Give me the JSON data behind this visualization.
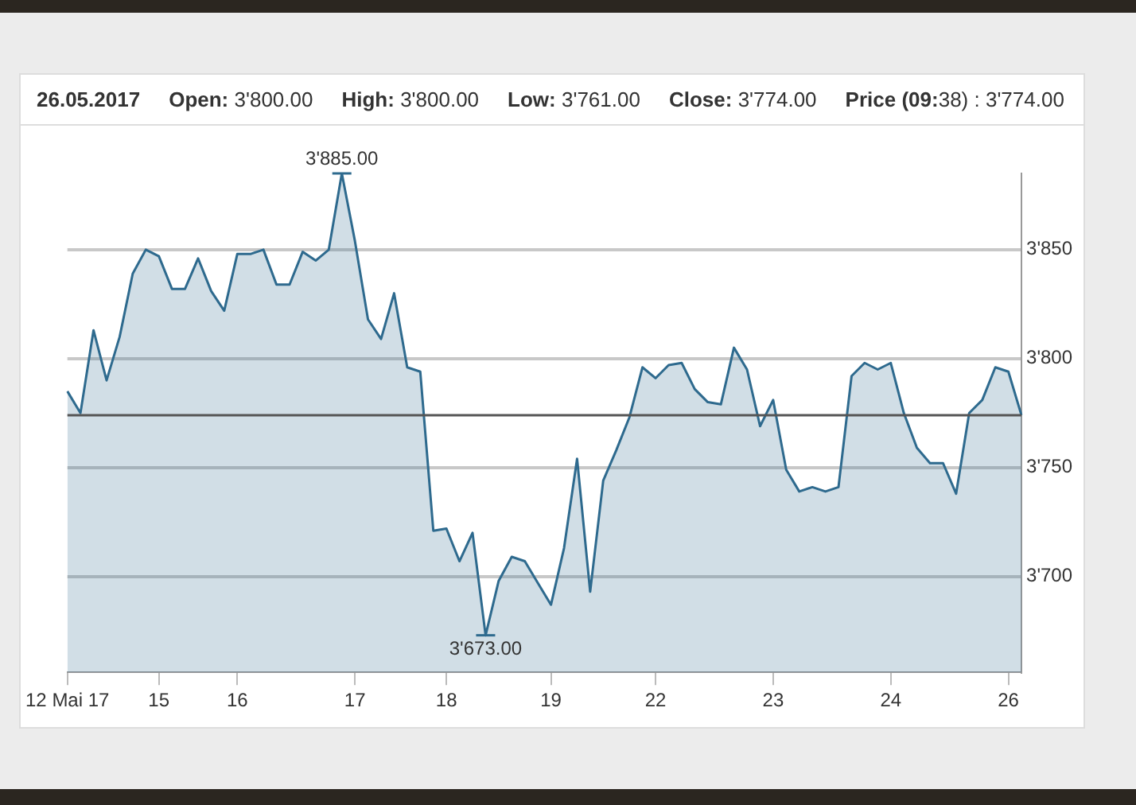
{
  "chart_data": {
    "type": "area",
    "categories": [
      "12 Mai 17",
      null,
      null,
      null,
      null,
      null,
      null,
      "15",
      null,
      null,
      null,
      null,
      null,
      "16",
      null,
      null,
      null,
      null,
      null,
      null,
      null,
      null,
      "17",
      null,
      null,
      null,
      null,
      null,
      null,
      "18",
      null,
      null,
      null,
      null,
      null,
      null,
      null,
      "19",
      null,
      null,
      null,
      null,
      null,
      null,
      null,
      "22",
      null,
      null,
      null,
      null,
      null,
      null,
      null,
      null,
      "23",
      null,
      null,
      null,
      null,
      null,
      null,
      null,
      null,
      "24",
      null,
      null,
      null,
      null,
      null,
      null,
      null,
      null,
      "26",
      null
    ],
    "series": [
      {
        "color": "#2e6a8e",
        "values": [
          3785,
          3775,
          3813,
          3790,
          3810,
          3839,
          3850,
          3847,
          3832,
          3832,
          3846,
          3831,
          3822,
          3848,
          3848,
          3850,
          3834,
          3834,
          3849,
          3845,
          3850,
          3885,
          3854,
          3818,
          3809,
          3830,
          3796,
          3794,
          3721,
          3722,
          3707,
          3720,
          3673,
          3698,
          3709,
          3707,
          3697,
          3687,
          3713,
          3754,
          3693,
          3744,
          3758,
          3773,
          3796,
          3791,
          3797,
          3798,
          3786,
          3780,
          3779,
          3805,
          3795,
          3769,
          3781,
          3749,
          3739,
          3741,
          3739,
          3741,
          3792,
          3798,
          3795,
          3798,
          3775,
          3759,
          3752,
          3752,
          3738,
          3775,
          3781,
          3796,
          3794,
          3774
        ]
      }
    ],
    "ylim": [
      3656,
      3885
    ],
    "yticks": [
      {
        "value": 3700,
        "label": "3'700"
      },
      {
        "value": 3750,
        "label": "3'750"
      },
      {
        "value": 3800,
        "label": "3'800"
      },
      {
        "value": 3850,
        "label": "3'850"
      }
    ],
    "grid": "y",
    "ref_lines": [
      {
        "axis": "y",
        "value": 3774,
        "color": "#555555"
      }
    ],
    "annotations": [
      "26.05.2017",
      "Open: 3'800.00",
      "High: 3'800.00",
      "Low: 3'761.00",
      "Close: 3'774.00",
      "Price (09:38) : 3'774.00",
      {
        "text": "3'885.00",
        "y": 3885
      },
      {
        "text": "3'673.00",
        "y": 3673
      }
    ]
  }
}
